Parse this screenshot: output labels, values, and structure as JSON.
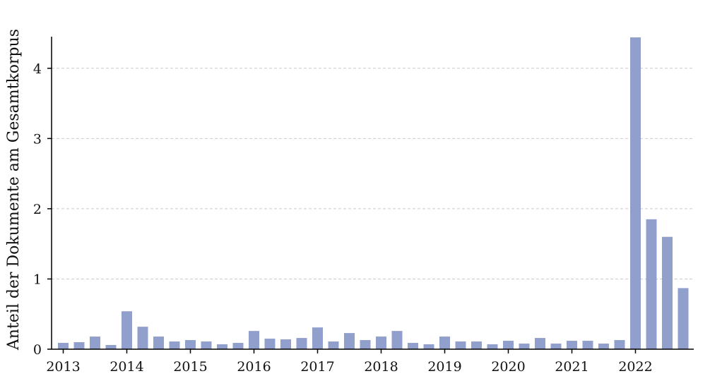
{
  "chart_data": {
    "type": "bar",
    "title": "",
    "xlabel": "",
    "ylabel": "Anteil der Dokumente am Gesamtkorpus",
    "x_tick_labels": [
      "2013",
      "2014",
      "2015",
      "2016",
      "2017",
      "2018",
      "2019",
      "2020",
      "2021",
      "2022"
    ],
    "y_ticks": [
      0,
      1,
      2,
      3,
      4
    ],
    "ylim": [
      0,
      4.45
    ],
    "grid": "horizontal dashed",
    "bar_color": "#919fcc",
    "categories": [
      "2013 Q1",
      "2013 Q2",
      "2013 Q3",
      "2013 Q4",
      "2014 Q1",
      "2014 Q2",
      "2014 Q3",
      "2014 Q4",
      "2015 Q1",
      "2015 Q2",
      "2015 Q3",
      "2015 Q4",
      "2016 Q1",
      "2016 Q2",
      "2016 Q3",
      "2016 Q4",
      "2017 Q1",
      "2017 Q2",
      "2017 Q3",
      "2017 Q4",
      "2018 Q1",
      "2018 Q2",
      "2018 Q3",
      "2018 Q4",
      "2019 Q1",
      "2019 Q2",
      "2019 Q3",
      "2019 Q4",
      "2020 Q1",
      "2020 Q2",
      "2020 Q3",
      "2020 Q4",
      "2021 Q1",
      "2021 Q2",
      "2021 Q3",
      "2021 Q4",
      "2022 Q1",
      "2022 Q2",
      "2022 Q3",
      "2022 Q4"
    ],
    "values": [
      0.09,
      0.1,
      0.18,
      0.06,
      0.54,
      0.32,
      0.18,
      0.11,
      0.13,
      0.11,
      0.07,
      0.09,
      0.26,
      0.15,
      0.14,
      0.16,
      0.31,
      0.11,
      0.23,
      0.13,
      0.18,
      0.26,
      0.09,
      0.07,
      0.18,
      0.11,
      0.11,
      0.07,
      0.12,
      0.08,
      0.16,
      0.08,
      0.12,
      0.12,
      0.08,
      0.13,
      4.44,
      1.85,
      1.6,
      0.87
    ]
  }
}
